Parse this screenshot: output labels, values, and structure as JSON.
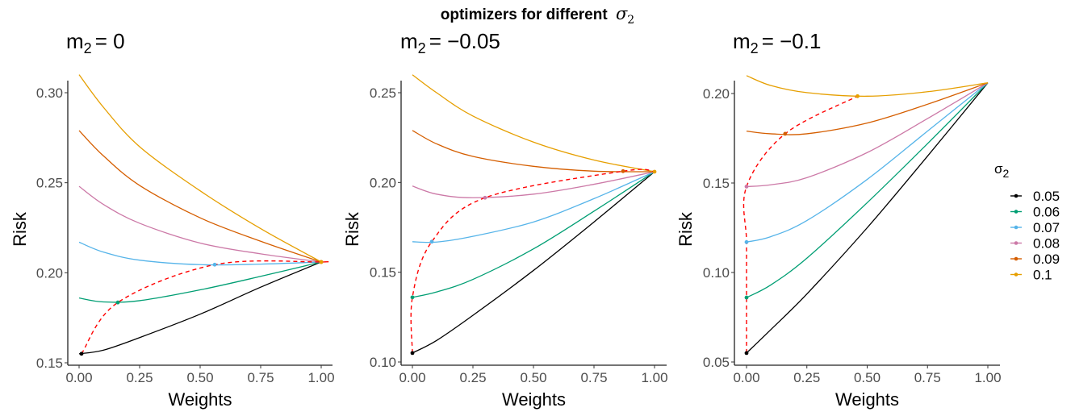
{
  "chart_data": {
    "type": "line",
    "title": "optimizers for different",
    "title_symbol": "σ",
    "title_subscript": "2",
    "legend": {
      "title_symbol": "σ",
      "title_subscript": "2",
      "placement": "right",
      "entries": [
        {
          "label": "0.05",
          "color": "#000000"
        },
        {
          "label": "0.06",
          "color": "#009E73"
        },
        {
          "label": "0.07",
          "color": "#56B4E9"
        },
        {
          "label": "0.08",
          "color": "#CC79A7"
        },
        {
          "label": "0.09",
          "color": "#D55E00"
        },
        {
          "label": "0.1",
          "color": "#E69F00"
        }
      ]
    },
    "optimizer_path_color": "#FF0000",
    "panels": [
      {
        "title_prefix": "m",
        "title_subscript": "2",
        "title_value": "= 0",
        "xlabel": "Weights",
        "ylabel": "Risk",
        "xlim": [
          0,
          1
        ],
        "ylim": [
          0.15,
          0.31
        ],
        "xticks": [
          "0.00",
          "0.25",
          "0.50",
          "0.75",
          "1.00"
        ],
        "xtick_values": [
          0,
          0.25,
          0.5,
          0.75,
          1
        ],
        "yticks": [
          "0.15",
          "0.20",
          "0.25",
          "0.30"
        ],
        "ytick_values": [
          0.15,
          0.2,
          0.25,
          0.3
        ],
        "x": [
          0,
          0.1,
          0.25,
          0.5,
          0.75,
          1
        ],
        "series": [
          {
            "name": "0.05",
            "values": [
              0.155,
              0.157,
              0.164,
              0.177,
              0.192,
              0.206
            ]
          },
          {
            "name": "0.06",
            "values": [
              0.186,
              0.1838,
              0.1845,
              0.1905,
              0.198,
              0.206
            ]
          },
          {
            "name": "0.07",
            "values": [
              0.217,
              0.2115,
              0.207,
              0.2045,
              0.2048,
              0.206
            ]
          },
          {
            "name": "0.08",
            "values": [
              0.248,
              0.238,
              0.2275,
              0.2165,
              0.2105,
              0.206
            ]
          },
          {
            "name": "0.09",
            "values": [
              0.279,
              0.265,
              0.2485,
              0.2305,
              0.2175,
              0.206
            ]
          },
          {
            "name": "0.1",
            "values": [
              0.31,
              0.292,
              0.27,
              0.2455,
              0.2245,
              0.206
            ]
          }
        ],
        "optimizers": [
          {
            "name": "0.05",
            "w": 0.01,
            "risk": 0.155
          },
          {
            "name": "0.06",
            "w": 0.16,
            "risk": 0.1835
          },
          {
            "name": "0.07",
            "w": 0.56,
            "risk": 0.2045
          },
          {
            "name": "0.08",
            "w": 1.0,
            "risk": 0.206
          },
          {
            "name": "0.09",
            "w": 1.0,
            "risk": 0.206
          },
          {
            "name": "0.1",
            "w": 1.0,
            "risk": 0.206
          }
        ]
      },
      {
        "title_prefix": "m",
        "title_subscript": "2",
        "title_value": "= −0.05",
        "xlabel": "Weights",
        "ylabel": "Risk",
        "xlim": [
          0,
          1
        ],
        "ylim": [
          0.1,
          0.26
        ],
        "xticks": [
          "0.00",
          "0.25",
          "0.50",
          "0.75",
          "1.00"
        ],
        "xtick_values": [
          0,
          0.25,
          0.5,
          0.75,
          1
        ],
        "yticks": [
          "0.10",
          "0.15",
          "0.20",
          "0.25"
        ],
        "ytick_values": [
          0.1,
          0.15,
          0.2,
          0.25
        ],
        "x": [
          0,
          0.1,
          0.25,
          0.5,
          0.75,
          1
        ],
        "series": [
          {
            "name": "0.05",
            "values": [
              0.105,
              0.112,
              0.126,
              0.151,
              0.178,
              0.206
            ]
          },
          {
            "name": "0.06",
            "values": [
              0.136,
              0.139,
              0.146,
              0.163,
              0.184,
              0.206
            ]
          },
          {
            "name": "0.07",
            "values": [
              0.167,
              0.1668,
              0.17,
              0.178,
              0.191,
              0.206
            ]
          },
          {
            "name": "0.08",
            "values": [
              0.198,
              0.1935,
              0.1915,
              0.1935,
              0.199,
              0.206
            ]
          },
          {
            "name": "0.09",
            "values": [
              0.229,
              0.2215,
              0.2145,
              0.209,
              0.2063,
              0.206
            ]
          },
          {
            "name": "0.1",
            "values": [
              0.26,
              0.25,
              0.237,
              0.2225,
              0.2125,
              0.206
            ]
          }
        ],
        "optimizers": [
          {
            "name": "0.05",
            "w": 0.0,
            "risk": 0.105
          },
          {
            "name": "0.06",
            "w": 0.0,
            "risk": 0.136
          },
          {
            "name": "0.07",
            "w": 0.08,
            "risk": 0.167
          },
          {
            "name": "0.08",
            "w": 0.3,
            "risk": 0.1915
          },
          {
            "name": "0.09",
            "w": 0.87,
            "risk": 0.2063
          },
          {
            "name": "0.1",
            "w": 1.0,
            "risk": 0.206
          }
        ]
      },
      {
        "title_prefix": "m",
        "title_subscript": "2",
        "title_value": "= −0.1",
        "xlabel": "Weights",
        "ylabel": "Risk",
        "xlim": [
          0,
          1
        ],
        "ylim": [
          0.05,
          0.21
        ],
        "xticks": [
          "0.00",
          "0.25",
          "0.50",
          "0.75",
          "1.00"
        ],
        "xtick_values": [
          0,
          0.25,
          0.5,
          0.75,
          1
        ],
        "yticks": [
          "0.05",
          "0.10",
          "0.15",
          "0.20"
        ],
        "ytick_values": [
          0.05,
          0.1,
          0.15,
          0.2
        ],
        "x": [
          0,
          0.1,
          0.25,
          0.5,
          0.75,
          1
        ],
        "series": [
          {
            "name": "0.05",
            "values": [
              0.055,
              0.068,
              0.088,
              0.125,
              0.165,
              0.206
            ]
          },
          {
            "name": "0.06",
            "values": [
              0.086,
              0.093,
              0.108,
              0.139,
              0.172,
              0.206
            ]
          },
          {
            "name": "0.07",
            "values": [
              0.117,
              0.12,
              0.129,
              0.152,
              0.179,
              0.206
            ]
          },
          {
            "name": "0.08",
            "values": [
              0.148,
              0.149,
              0.153,
              0.167,
              0.186,
              0.206
            ]
          },
          {
            "name": "0.09",
            "values": [
              0.179,
              0.1775,
              0.1775,
              0.1835,
              0.194,
              0.206
            ]
          },
          {
            "name": "0.1",
            "values": [
              0.21,
              0.2045,
              0.2005,
              0.1985,
              0.201,
              0.206
            ]
          }
        ],
        "optimizers": [
          {
            "name": "0.05",
            "w": 0.0,
            "risk": 0.055
          },
          {
            "name": "0.06",
            "w": 0.0,
            "risk": 0.086
          },
          {
            "name": "0.07",
            "w": 0.0,
            "risk": 0.117
          },
          {
            "name": "0.08",
            "w": 0.0,
            "risk": 0.148
          },
          {
            "name": "0.09",
            "w": 0.16,
            "risk": 0.1775
          },
          {
            "name": "0.1",
            "w": 0.46,
            "risk": 0.1985
          }
        ]
      }
    ]
  }
}
